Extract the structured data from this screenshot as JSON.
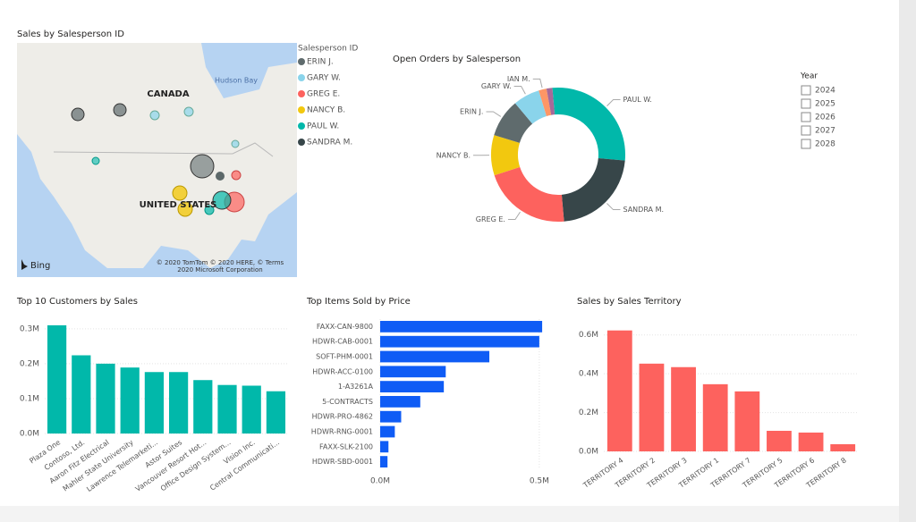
{
  "chart_data": [
    {
      "type": "map",
      "title": "Sales by Salesperson ID",
      "legend_title": "Salesperson ID",
      "series": [
        {
          "name": "ERIN J.",
          "color": "#5f6b6d"
        },
        {
          "name": "GARY W.",
          "color": "#8ad4eb"
        },
        {
          "name": "GREG E.",
          "color": "#fd625e"
        },
        {
          "name": "NANCY B.",
          "color": "#f2c80f"
        },
        {
          "name": "PAUL W.",
          "color": "#01b8aa"
        },
        {
          "name": "SANDRA M.",
          "color": "#374649"
        }
      ],
      "labels": [
        "CANADA",
        "UNITED STATES",
        "Hudson Bay"
      ],
      "attribution": [
        "© 2020 TomTom © 2020 HERE, © Terms",
        "2020 Microsoft Corporation"
      ],
      "logo": "Bing"
    },
    {
      "type": "donut",
      "title": "Open Orders by Salesperson",
      "categories": [
        "PAUL W.",
        "SANDRA M.",
        "GREG E.",
        "NANCY B.",
        "ERIN J.",
        "GARY W.",
        "IAN M.",
        null
      ],
      "values": [
        27.8,
        22.2,
        21.4,
        9.7,
        9.2,
        6.4,
        1.9,
        1.4
      ],
      "colors": [
        "#01b8aa",
        "#374649",
        "#fd625e",
        "#f2c80f",
        "#5f6b6d",
        "#8ad4eb",
        "#fe9666",
        "#a66999"
      ]
    },
    {
      "type": "bar",
      "title": "Top 10 Customers by Sales",
      "categories": [
        "Plaza One",
        "Contoso, Ltd.",
        "Aaron Fitz Electrical",
        "Mahler State University",
        "Lawrence Telemarketi...",
        "Astor Suites",
        "Vancouver Resort Hot...",
        "Office Design System...",
        "Vision Inc.",
        "Central Communicati..."
      ],
      "values": [
        0.31,
        0.224,
        0.2,
        0.189,
        0.176,
        0.176,
        0.153,
        0.139,
        0.137,
        0.121
      ],
      "color": "#01b8aa",
      "ylim": [
        0,
        0.32
      ],
      "yticks": [
        {
          "value": 0,
          "label": "0.0M"
        },
        {
          "value": 0.1,
          "label": "0.1M"
        },
        {
          "value": 0.2,
          "label": "0.2M"
        },
        {
          "value": 0.3,
          "label": "0.3M"
        }
      ],
      "grid": true
    },
    {
      "type": "hbar",
      "title": "Top Items Sold by Price",
      "categories": [
        "FAXX-CAN-9800",
        "HDWR-CAB-0001",
        "SOFT-PHM-0001",
        "HDWR-ACC-0100",
        "1-A3261A",
        "5-CONTRACTS",
        "HDWR-PRO-4862",
        "HDWR-RNG-0001",
        "FAXX-SLK-2100",
        "HDWR-SBD-0001"
      ],
      "values": [
        0.509,
        0.5,
        0.343,
        0.206,
        0.2,
        0.126,
        0.066,
        0.046,
        0.026,
        0.023
      ],
      "color": "#0f5cf5",
      "xlim": [
        0,
        0.52
      ],
      "xticks": [
        {
          "value": 0,
          "label": "0.0M"
        },
        {
          "value": 0.5,
          "label": "0.5M"
        }
      ],
      "grid": true
    },
    {
      "type": "bar",
      "title": "Sales by Sales Territory",
      "categories": [
        "TERRITORY 4",
        "TERRITORY 2",
        "TERRITORY 3",
        "TERRITORY 1",
        "TERRITORY 7",
        "TERRITORY 5",
        "TERRITORY 6",
        "TERRITORY 8"
      ],
      "values": [
        0.623,
        0.452,
        0.434,
        0.346,
        0.309,
        0.106,
        0.097,
        0.037
      ],
      "color": "#fd625e",
      "ylim": [
        0,
        0.64
      ],
      "yticks": [
        {
          "value": 0,
          "label": "0.0M"
        },
        {
          "value": 0.2,
          "label": "0.2M"
        },
        {
          "value": 0.4,
          "label": "0.4M"
        },
        {
          "value": 0.6,
          "label": "0.6M"
        }
      ],
      "grid": true
    }
  ],
  "slicer": {
    "title": "Year",
    "options": [
      "2024",
      "2025",
      "2026",
      "2027",
      "2028"
    ]
  }
}
